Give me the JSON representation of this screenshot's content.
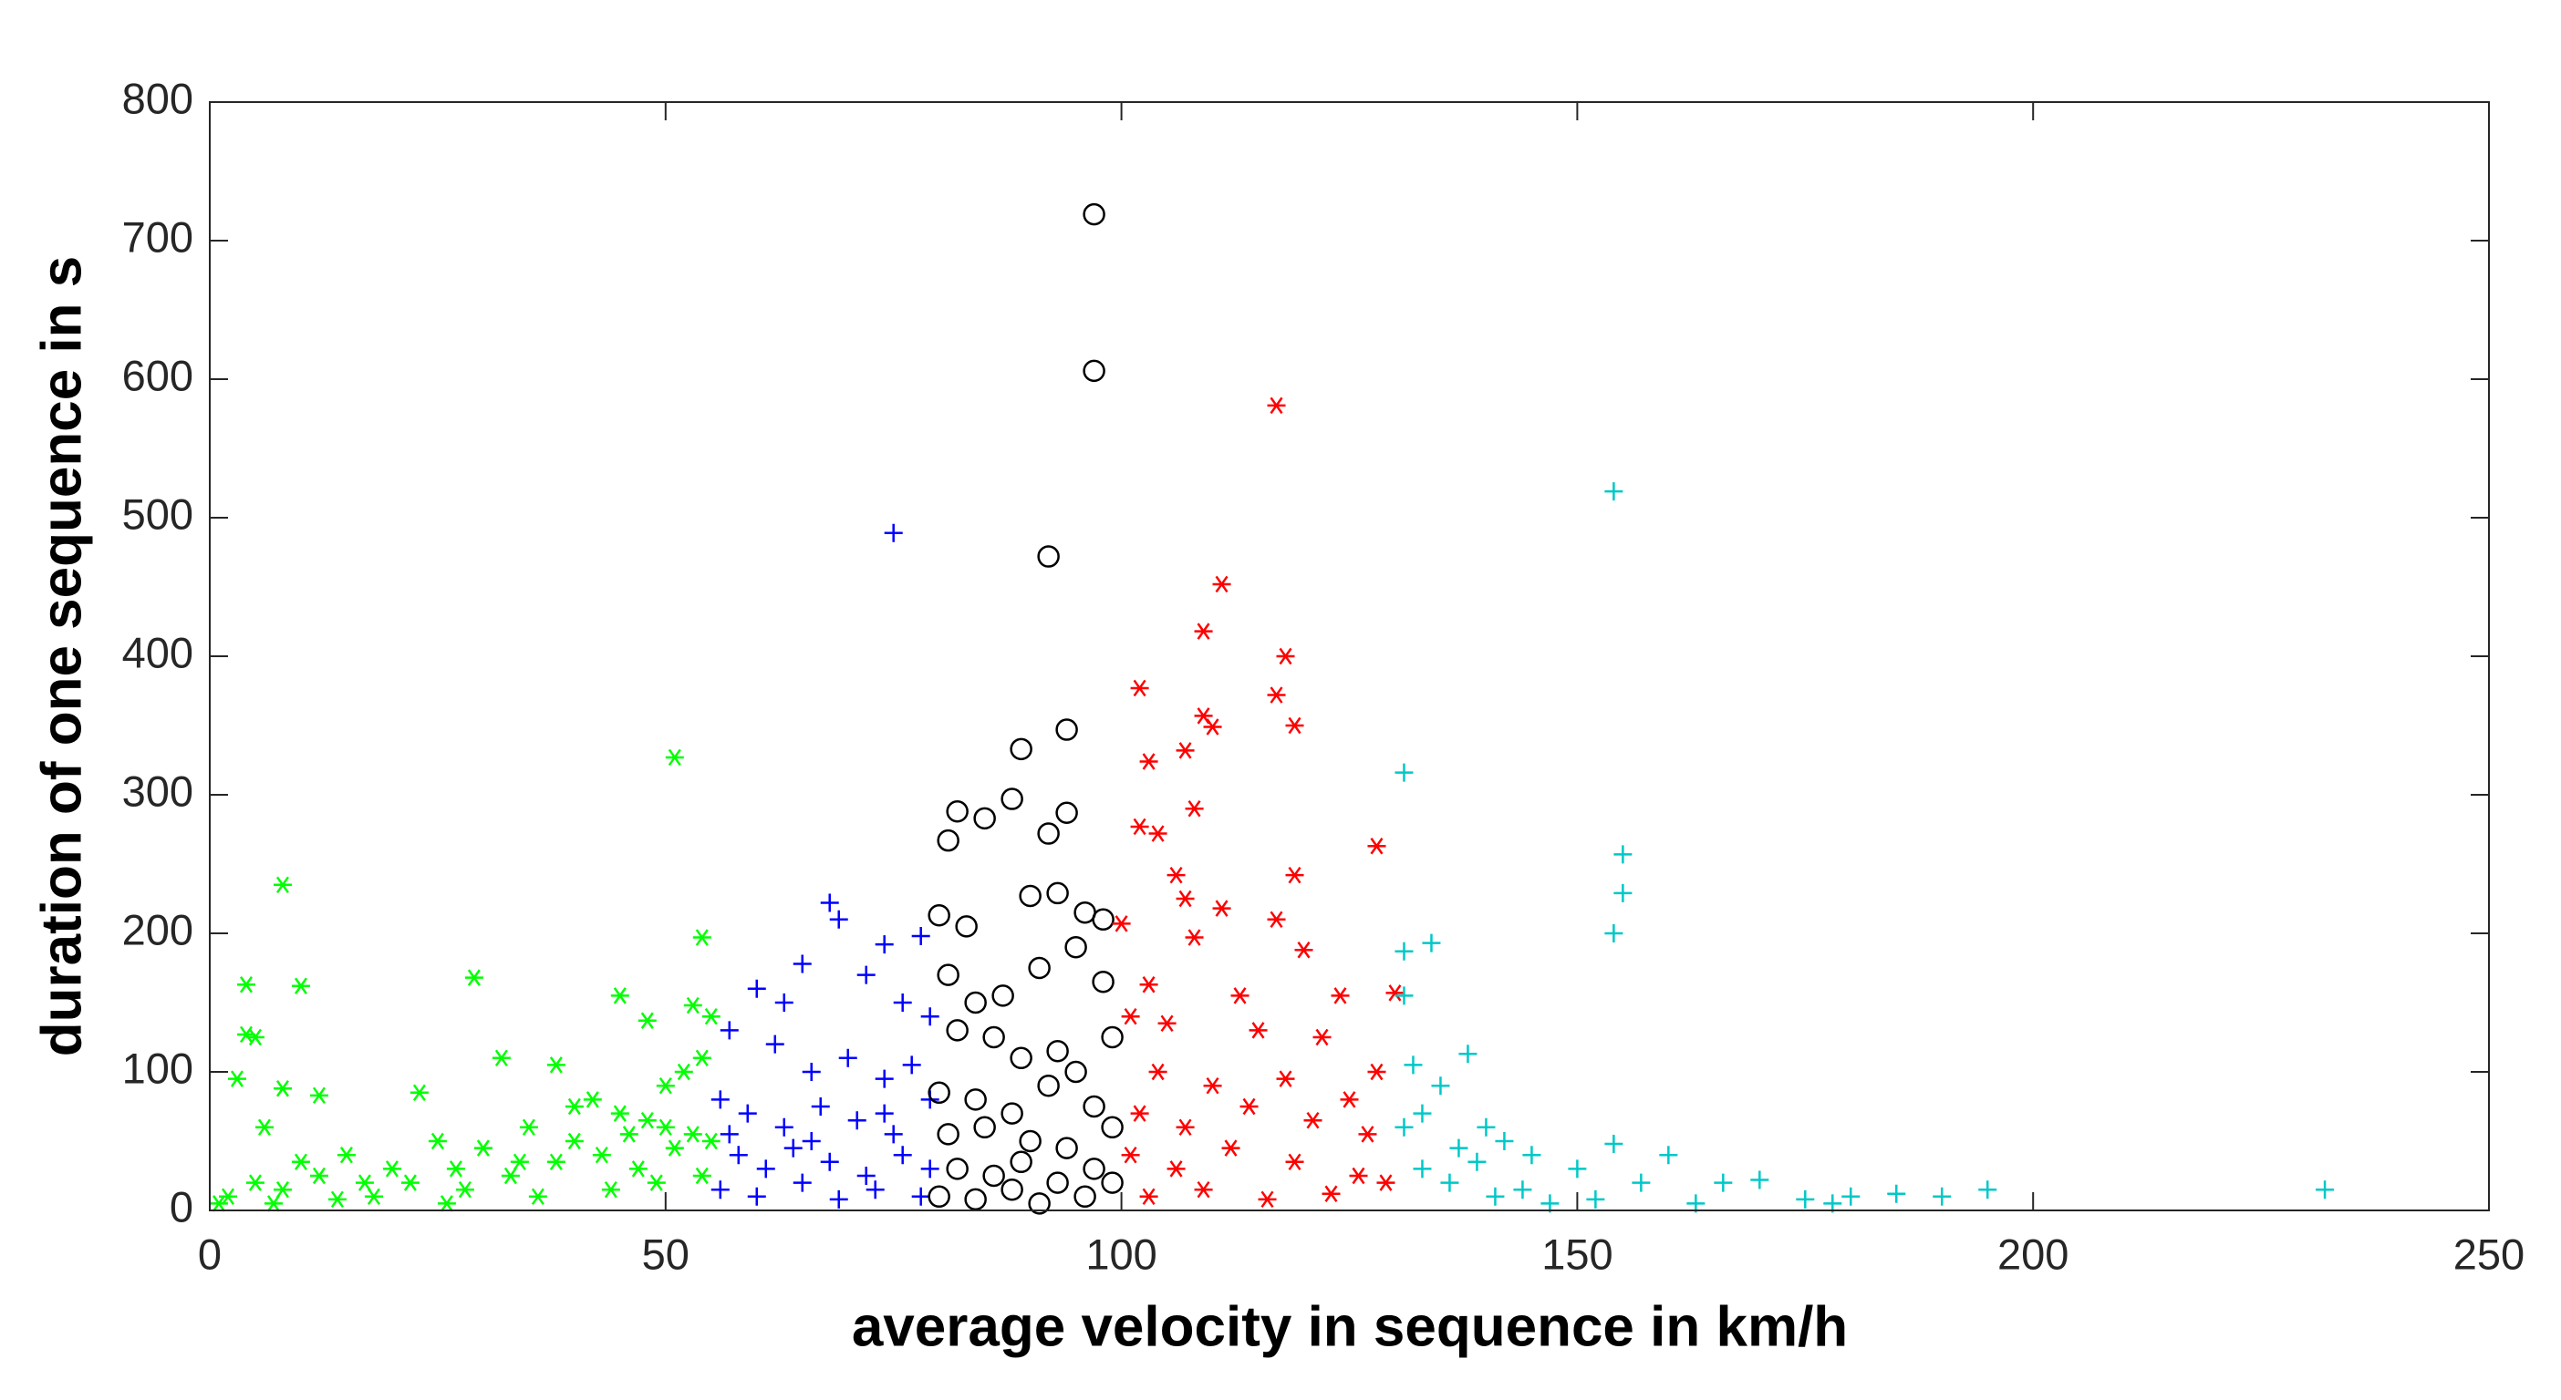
{
  "chart_data": {
    "type": "scatter",
    "xlabel": "average velocity in sequence in km/h",
    "ylabel": "duration of one sequence in s",
    "xlim": [
      0,
      250
    ],
    "xticks": [
      0,
      50,
      100,
      150,
      200,
      250
    ],
    "ylim": [
      0,
      800
    ],
    "yticks": [
      0,
      100,
      200,
      300,
      400,
      500,
      600,
      700,
      800
    ],
    "grid": false,
    "series": [
      {
        "color": "#00ff00",
        "marker": "asterisk",
        "x": [
          51,
          8,
          4,
          10,
          29,
          54,
          45,
          4,
          5,
          8,
          12,
          23,
          32,
          38,
          48,
          53,
          55,
          3,
          6,
          15,
          20,
          25,
          30,
          35,
          40,
          42,
          45,
          48,
          50,
          52,
          54,
          2,
          5,
          8,
          12,
          18,
          22,
          28,
          33,
          38,
          43,
          47,
          51,
          53,
          55,
          1,
          7,
          14,
          26,
          36,
          44,
          49,
          54,
          46,
          50,
          40,
          34,
          27,
          17,
          10
        ],
        "values": [
          327,
          235,
          163,
          162,
          168,
          197,
          155,
          127,
          125,
          88,
          83,
          85,
          110,
          105,
          137,
          148,
          140,
          95,
          60,
          40,
          30,
          50,
          45,
          60,
          75,
          80,
          70,
          65,
          90,
          100,
          110,
          10,
          20,
          15,
          25,
          10,
          20,
          15,
          25,
          35,
          40,
          30,
          45,
          55,
          50,
          5,
          5,
          8,
          5,
          10,
          15,
          20,
          25,
          55,
          60,
          50,
          35,
          30,
          20,
          35
        ]
      },
      {
        "color": "#0000ff",
        "marker": "plus",
        "x": [
          75,
          68,
          69,
          74,
          78,
          65,
          60,
          63,
          72,
          76,
          79,
          57,
          62,
          66,
          70,
          74,
          77,
          56,
          59,
          63,
          67,
          71,
          75,
          79,
          58,
          61,
          64,
          68,
          72,
          76,
          79,
          56,
          60,
          65,
          69,
          73,
          78,
          57,
          66,
          74
        ],
        "values": [
          489,
          222,
          210,
          192,
          198,
          178,
          160,
          150,
          170,
          150,
          140,
          130,
          120,
          100,
          110,
          95,
          105,
          80,
          70,
          60,
          75,
          65,
          55,
          80,
          40,
          30,
          45,
          35,
          25,
          40,
          30,
          15,
          10,
          20,
          8,
          15,
          10,
          55,
          50,
          70
        ]
      },
      {
        "color": "#000000",
        "marker": "circle",
        "x": [
          97,
          97,
          92,
          94,
          89,
          88,
          94,
          82,
          85,
          81,
          92,
          90,
          93,
          80,
          96,
          83,
          98,
          95,
          91,
          81,
          87,
          84,
          98,
          82,
          86,
          89,
          93,
          99,
          95,
          80,
          84,
          88,
          92,
          97,
          81,
          85,
          90,
          94,
          99,
          82,
          86,
          89,
          93,
          97,
          80,
          84,
          88,
          91,
          96,
          99
        ],
        "values": [
          719,
          606,
          472,
          347,
          333,
          297,
          287,
          288,
          283,
          267,
          272,
          227,
          229,
          213,
          215,
          205,
          210,
          190,
          175,
          170,
          155,
          150,
          165,
          130,
          125,
          110,
          115,
          125,
          100,
          85,
          80,
          70,
          90,
          75,
          55,
          60,
          50,
          45,
          60,
          30,
          25,
          35,
          20,
          30,
          10,
          8,
          15,
          5,
          10,
          20
        ]
      },
      {
        "color": "#ff0000",
        "marker": "asterisk",
        "x": [
          117,
          111,
          109,
          118,
          102,
          109,
          110,
          117,
          119,
          107,
          103,
          108,
          102,
          104,
          128,
          119,
          106,
          107,
          111,
          117,
          100,
          108,
          120,
          130,
          103,
          113,
          124,
          101,
          105,
          115,
          122,
          128,
          104,
          110,
          118,
          125,
          102,
          107,
          114,
          121,
          127,
          101,
          106,
          112,
          119,
          126,
          103,
          109,
          116,
          123,
          129
        ],
        "values": [
          581,
          452,
          418,
          400,
          377,
          357,
          349,
          372,
          350,
          332,
          324,
          290,
          277,
          272,
          263,
          242,
          242,
          225,
          218,
          210,
          207,
          197,
          188,
          157,
          163,
          155,
          155,
          140,
          135,
          130,
          125,
          100,
          100,
          90,
          95,
          80,
          70,
          60,
          75,
          65,
          55,
          40,
          30,
          45,
          35,
          25,
          10,
          15,
          8,
          12,
          20
        ]
      },
      {
        "color": "#00c8c8",
        "marker": "plus",
        "x": [
          154,
          131,
          155,
          155,
          154,
          131,
          134,
          131,
          132,
          138,
          135,
          140,
          142,
          137,
          145,
          150,
          154,
          157,
          160,
          166,
          170,
          175,
          180,
          185,
          190,
          195,
          232,
          133,
          136,
          141,
          147,
          152,
          163,
          178,
          144,
          131,
          133,
          139
        ],
        "values": [
          519,
          316,
          257,
          229,
          200,
          187,
          193,
          155,
          105,
          113,
          90,
          60,
          50,
          45,
          40,
          30,
          48,
          20,
          40,
          20,
          22,
          8,
          10,
          12,
          10,
          15,
          15,
          30,
          20,
          10,
          5,
          8,
          5,
          5,
          15,
          60,
          70,
          35
        ]
      }
    ]
  }
}
